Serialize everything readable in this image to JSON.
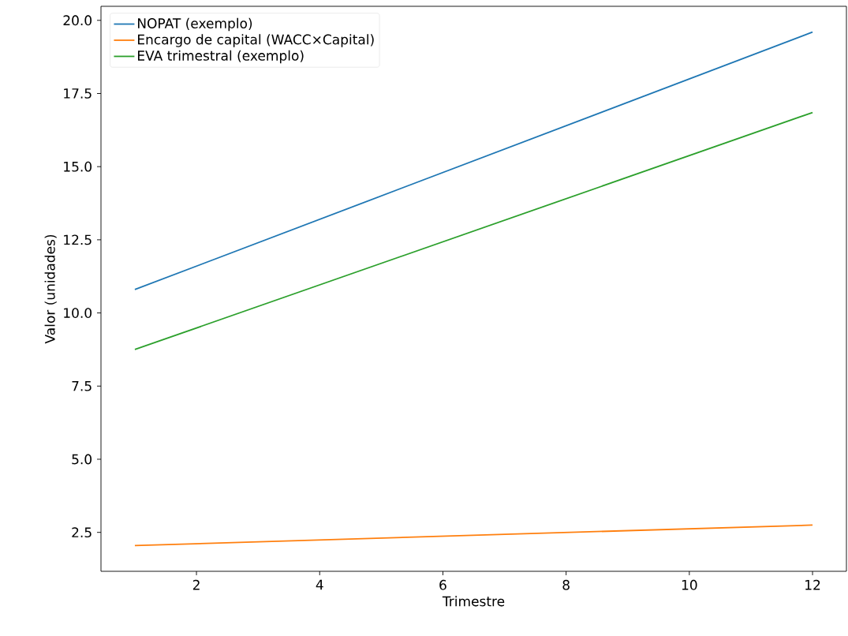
{
  "chart_data": {
    "type": "line",
    "xlabel": "Trimestre",
    "ylabel": "Valor (unidades)",
    "xlim": [
      0.45,
      12.55
    ],
    "ylim": [
      1.17,
      20.48
    ],
    "xticks": [
      2,
      4,
      6,
      8,
      10,
      12
    ],
    "yticks": [
      2.5,
      {
        "value": 5,
        "label": "5.0"
      },
      7.5,
      {
        "value": 10,
        "label": "10.0"
      },
      12.5,
      {
        "value": 15,
        "label": "15.0"
      },
      17.5,
      {
        "value": 20,
        "label": "20.0"
      }
    ],
    "x": [
      1,
      12
    ],
    "series": [
      {
        "name": "NOPAT (exemplo)",
        "color": "#1f77b4",
        "values": [
          10.8,
          19.6
        ]
      },
      {
        "name": "Encargo de capital (WACC×Capital)",
        "color": "#ff7f0e",
        "values": [
          2.05,
          2.75
        ]
      },
      {
        "name": "EVA trimestral (exemplo)",
        "color": "#2ca02c",
        "values": [
          8.75,
          16.85
        ]
      }
    ],
    "legend": "top left",
    "grid": false,
    "marker": "none",
    "line_style": "solid"
  }
}
